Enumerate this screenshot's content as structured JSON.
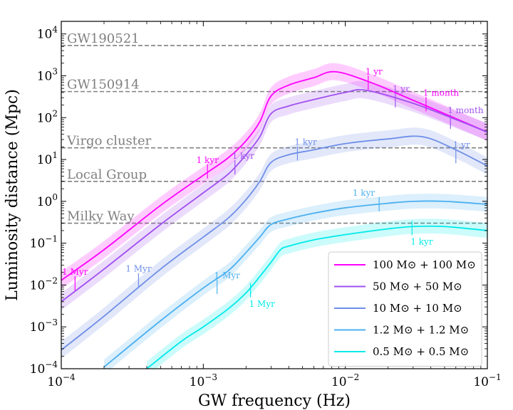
{
  "chart_data": {
    "type": "line",
    "title": "",
    "xlabel": "GW frequency (Hz)",
    "ylabel": "Luminosity distance (Mpc)",
    "xscale": "log",
    "yscale": "log",
    "xlim": [
      0.0001,
      0.1
    ],
    "ylim": [
      0.0001,
      20000
    ],
    "x_ticks": [
      {
        "value": 0.0001,
        "base": "10",
        "exp": "−4"
      },
      {
        "value": 0.001,
        "base": "10",
        "exp": "−3"
      },
      {
        "value": 0.01,
        "base": "10",
        "exp": "−2"
      },
      {
        "value": 0.1,
        "base": "10",
        "exp": "−1"
      }
    ],
    "y_ticks": [
      {
        "value": 0.0001,
        "base": "10",
        "exp": "−4"
      },
      {
        "value": 0.001,
        "base": "10",
        "exp": "−3"
      },
      {
        "value": 0.01,
        "base": "10",
        "exp": "−2"
      },
      {
        "value": 0.1,
        "base": "10",
        "exp": "−1"
      },
      {
        "value": 1,
        "base": "10",
        "exp": "0"
      },
      {
        "value": 10,
        "base": "10",
        "exp": "1"
      },
      {
        "value": 100,
        "base": "10",
        "exp": "2"
      },
      {
        "value": 1000,
        "base": "10",
        "exp": "3"
      },
      {
        "value": 10000,
        "base": "10",
        "exp": "4"
      }
    ],
    "reference_lines": [
      {
        "label": "GW190521",
        "y": 5300
      },
      {
        "label": "GW150914",
        "y": 420
      },
      {
        "label": "Virgo cluster",
        "y": 19
      },
      {
        "label": "Local Group",
        "y": 3
      },
      {
        "label": "Milky Way",
        "y": 0.3
      }
    ],
    "series": [
      {
        "name": "100 M⊙ + 100 M⊙",
        "color": "#ff00ff",
        "band_factor": 1.6,
        "x": [
          0.0001,
          0.0002,
          0.0005,
          0.001,
          0.0015,
          0.002,
          0.0025,
          0.003,
          0.004,
          0.006,
          0.0085,
          0.015,
          0.03,
          0.06,
          0.1
        ],
        "y": [
          0.013,
          0.07,
          0.8,
          4.2,
          11,
          28,
          80,
          330,
          600,
          900,
          1250,
          700,
          260,
          95,
          45
        ]
      },
      {
        "name": "50 M⊙ + 50 M⊙",
        "color": "#a050f0",
        "band_factor": 1.6,
        "x": [
          0.0001,
          0.0002,
          0.0005,
          0.001,
          0.0015,
          0.002,
          0.0025,
          0.003,
          0.004,
          0.006,
          0.01,
          0.014,
          0.03,
          0.06,
          0.1
        ],
        "y": [
          0.004,
          0.024,
          0.28,
          1.6,
          4.5,
          13,
          35,
          125,
          190,
          270,
          400,
          450,
          220,
          90,
          45
        ]
      },
      {
        "name": "10 M⊙ + 10 M⊙",
        "color": "#6f8ee8",
        "band_factor": 1.6,
        "x": [
          0.0001,
          0.0002,
          0.0005,
          0.001,
          0.0015,
          0.002,
          0.0025,
          0.003,
          0.004,
          0.006,
          0.01,
          0.02,
          0.035,
          0.06,
          0.1
        ],
        "y": [
          0.00028,
          0.0018,
          0.024,
          0.14,
          0.4,
          1.1,
          3,
          8.5,
          13,
          17,
          24,
          31,
          35,
          17,
          7
        ]
      },
      {
        "name": "1.2 M⊙ + 1.2 M⊙",
        "color": "#4ab0f0",
        "band_factor": 1.5,
        "x": [
          0.0002,
          0.0005,
          0.001,
          0.0015,
          0.002,
          0.0025,
          0.003,
          0.004,
          0.006,
          0.01,
          0.02,
          0.03,
          0.05,
          0.1
        ],
        "y": [
          0.00011,
          0.0014,
          0.0085,
          0.022,
          0.06,
          0.14,
          0.28,
          0.38,
          0.52,
          0.7,
          0.9,
          1.0,
          1.0,
          0.85
        ]
      },
      {
        "name": "0.5 M⊙ + 0.5 M⊙",
        "color": "#00eaea",
        "band_factor": 1.5,
        "x": [
          0.0004,
          0.0007,
          0.001,
          0.0015,
          0.002,
          0.0025,
          0.003,
          0.0035,
          0.004,
          0.006,
          0.01,
          0.02,
          0.03,
          0.05,
          0.1
        ],
        "y": [
          0.0001,
          0.00045,
          0.001,
          0.0027,
          0.0065,
          0.016,
          0.035,
          0.07,
          0.085,
          0.12,
          0.16,
          0.22,
          0.25,
          0.25,
          0.2
        ]
      }
    ],
    "annotations": [
      {
        "label": "1 Myr",
        "x": 0.000125,
        "y": 0.011,
        "color": "#ff00ff",
        "pos": "above"
      },
      {
        "label": "1 kyr",
        "x": 0.00107,
        "y": 5.2,
        "color": "#ff00ff",
        "pos": "above"
      },
      {
        "label": "1 yr",
        "x": 0.0145,
        "y": 680,
        "color": "#ff00ff",
        "pos": "above-right"
      },
      {
        "label": "1 month",
        "x": 0.037,
        "y": 210,
        "color": "#ff00ff",
        "pos": "above-right"
      },
      {
        "label": "1 kyr",
        "x": 0.00167,
        "y": 6.5,
        "color": "#a050f0",
        "pos": "above-right"
      },
      {
        "label": "1 yr",
        "x": 0.0225,
        "y": 260,
        "color": "#a050f0",
        "pos": "above-right"
      },
      {
        "label": "1 month",
        "x": 0.055,
        "y": 80,
        "color": "#a050f0",
        "pos": "above-right"
      },
      {
        "label": "1 Myr",
        "x": 0.00035,
        "y": 0.013,
        "color": "#6f8ee8",
        "pos": "above"
      },
      {
        "label": "1 kyr",
        "x": 0.0046,
        "y": 14,
        "color": "#6f8ee8",
        "pos": "above-right"
      },
      {
        "label": "1 yr",
        "x": 0.06,
        "y": 12,
        "color": "#6f8ee8",
        "pos": "above-right"
      },
      {
        "label": "1 Myr",
        "x": 0.00125,
        "y": 0.009,
        "color": "#4ab0f0",
        "pos": "above-right"
      },
      {
        "label": "1 kyr",
        "x": 0.0173,
        "y": 0.85,
        "color": "#4ab0f0",
        "pos": "above-left"
      },
      {
        "label": "1 Myr",
        "x": 0.00215,
        "y": 0.0075,
        "color": "#00eaea",
        "pos": "below-right"
      },
      {
        "label": "1 kyr",
        "x": 0.0295,
        "y": 0.23,
        "color": "#00eaea",
        "pos": "below-right"
      }
    ]
  }
}
